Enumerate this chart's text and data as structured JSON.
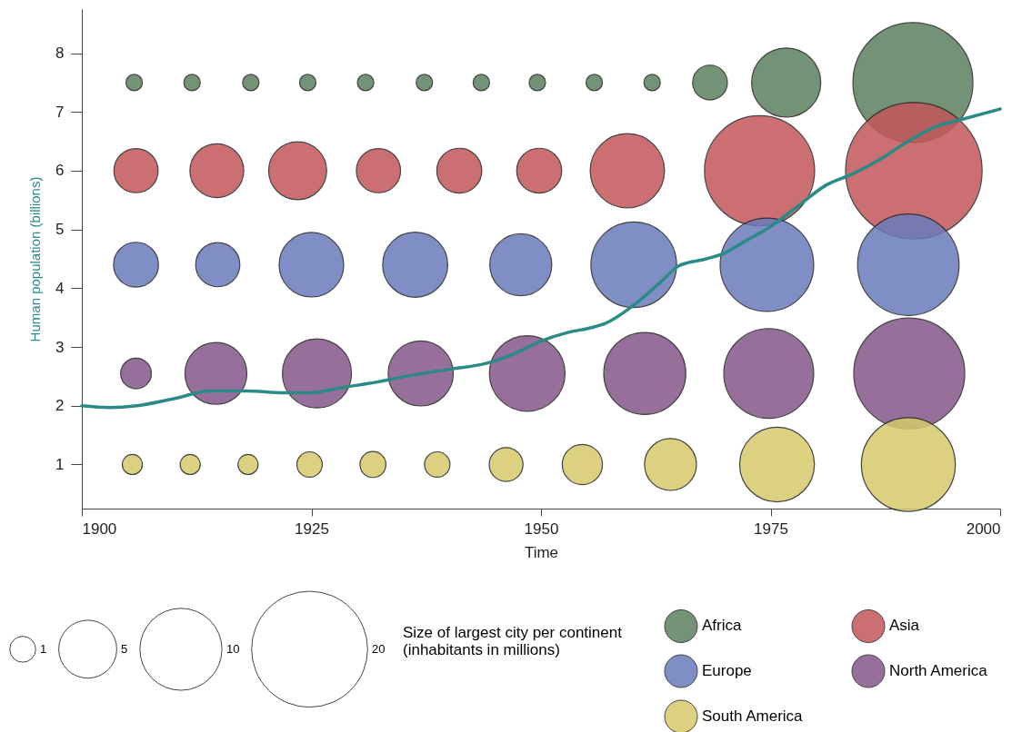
{
  "chart_data": {
    "type": "bubble",
    "xlabel": "Time",
    "ylabel": "Human population (billions)",
    "legend_title": "Size of largest city per continent\n(inhabitants in millions)",
    "xlim": [
      1900,
      2000
    ],
    "xticks": [
      1900,
      1925,
      1950,
      1975,
      2000
    ],
    "ylim": [
      0.25,
      8.75
    ],
    "yticks": [
      1,
      2,
      3,
      4,
      5,
      6,
      7,
      8
    ],
    "grid": false,
    "legend": "bottom right",
    "marker": "circle",
    "size_legend": [
      1,
      5,
      10,
      20
    ],
    "series": [
      {
        "name": "Africa",
        "color": "#5b7f5f",
        "x": [
          1905.7,
          1912,
          1918.4,
          1924.6,
          1930.9,
          1937.3,
          1943.5,
          1949.6,
          1955.8,
          1962.1,
          1968.4,
          1976.7,
          1990.5
        ],
        "values": [
          7.5,
          7.5,
          7.5,
          7.5,
          7.5,
          7.5,
          7.5,
          7.5,
          7.5,
          7.5,
          7.5,
          7.5,
          7.5
        ],
        "sizes": [
          0.4,
          0.4,
          0.4,
          0.4,
          0.4,
          0.4,
          0.4,
          0.4,
          0.4,
          0.4,
          1.8,
          7.1,
          21.4
        ]
      },
      {
        "name": "Asia",
        "color": "#c4575a",
        "x": [
          1905.9,
          1914.7,
          1923.5,
          1932.3,
          1941.1,
          1949.8,
          1959.4,
          1973.8,
          1990.6
        ],
        "values": [
          6,
          6,
          6,
          6,
          6,
          6,
          6,
          6,
          6
        ],
        "sizes": [
          2.9,
          4.3,
          5,
          2.9,
          3,
          3,
          8.2,
          18,
          27.7
        ]
      },
      {
        "name": "Europe",
        "color": "#6a7bbd",
        "x": [
          1905.9,
          1914.8,
          1925,
          1936.3,
          1947.8,
          1960.1,
          1974.6,
          1990
        ],
        "values": [
          4.4,
          4.4,
          4.4,
          4.4,
          4.4,
          4.4,
          4.4,
          4.4
        ],
        "sizes": [
          3,
          2.9,
          6.2,
          6.3,
          5.7,
          10.9,
          13,
          15.3
        ]
      },
      {
        "name": "North America",
        "color": "#86568a",
        "x": [
          1905.9,
          1914.6,
          1925.6,
          1936.9,
          1948.5,
          1961.3,
          1974.8,
          1990.1
        ],
        "values": [
          2.55,
          2.55,
          2.55,
          2.55,
          2.55,
          2.55,
          2.55,
          2.55
        ],
        "sizes": [
          1.4,
          5.7,
          7.1,
          6.3,
          8.5,
          10,
          12,
          18.3
        ]
      },
      {
        "name": "South America",
        "color": "#d6ca6c",
        "x": [
          1905.5,
          1911.8,
          1918.1,
          1924.8,
          1931.7,
          1938.7,
          1946.2,
          1954.5,
          1964.1,
          1975.7,
          1990
        ],
        "values": [
          1,
          1,
          1,
          1,
          1,
          1,
          1,
          1,
          1,
          1,
          1
        ],
        "sizes": [
          0.6,
          0.6,
          0.6,
          0.96,
          1,
          0.96,
          1.7,
          2.4,
          4,
          8.3,
          13.1
        ]
      },
      {
        "type": "line",
        "marker": "none",
        "color": "#2a8a86",
        "x": [
          1900,
          1903,
          1906,
          1910,
          1914,
          1918,
          1922,
          1925,
          1928,
          1932,
          1936,
          1940,
          1944,
          1947,
          1950,
          1953,
          1955.5,
          1957,
          1960,
          1963,
          1965,
          1968,
          1970,
          1972,
          1975,
          1978,
          1981,
          1984,
          1987,
          1990,
          1993,
          1996,
          2000
        ],
        "values": [
          2,
          1.97,
          2,
          2.12,
          2.25,
          2.25,
          2.22,
          2.22,
          2.3,
          2.4,
          2.52,
          2.62,
          2.72,
          2.88,
          3.1,
          3.25,
          3.33,
          3.4,
          3.7,
          4.1,
          4.38,
          4.5,
          4.6,
          4.78,
          5.05,
          5.4,
          5.75,
          5.95,
          6.2,
          6.5,
          6.75,
          6.88,
          7.05
        ]
      }
    ]
  }
}
